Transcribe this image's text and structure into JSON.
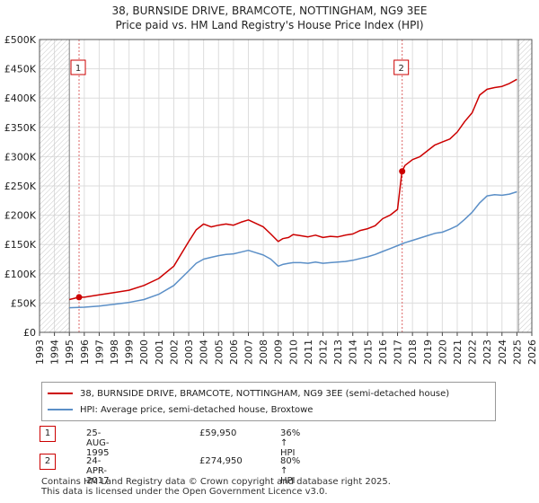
{
  "chart_data": {
    "type": "line",
    "title": "38, BURNSIDE DRIVE, BRAMCOTE, NOTTINGHAM, NG9 3EE",
    "subtitle": "Price paid vs. HM Land Registry's House Price Index (HPI)",
    "xlabel": "",
    "ylabel": "",
    "xlim": [
      1993,
      2026
    ],
    "ylim": [
      0,
      500000
    ],
    "x_ticks": [
      "1993",
      "1994",
      "1995",
      "1996",
      "1997",
      "1998",
      "1999",
      "2000",
      "2001",
      "2002",
      "2003",
      "2004",
      "2005",
      "2006",
      "2007",
      "2008",
      "2009",
      "2010",
      "2011",
      "2012",
      "2013",
      "2014",
      "2015",
      "2016",
      "2017",
      "2018",
      "2019",
      "2020",
      "2021",
      "2022",
      "2023",
      "2024",
      "2025",
      "2026"
    ],
    "y_ticks": [
      {
        "value": 0,
        "label": "£0"
      },
      {
        "value": 50000,
        "label": "£50K"
      },
      {
        "value": 100000,
        "label": "£100K"
      },
      {
        "value": 150000,
        "label": "£150K"
      },
      {
        "value": 200000,
        "label": "£200K"
      },
      {
        "value": 250000,
        "label": "£250K"
      },
      {
        "value": 300000,
        "label": "£300K"
      },
      {
        "value": 350000,
        "label": "£350K"
      },
      {
        "value": 400000,
        "label": "£400K"
      },
      {
        "value": 450000,
        "label": "£450K"
      },
      {
        "value": 500000,
        "label": "£500K"
      }
    ],
    "grid": true,
    "hatched_ranges": [
      [
        1993,
        1995.0
      ],
      [
        2025.1,
        2026
      ]
    ],
    "series": [
      {
        "name": "38, BURNSIDE DRIVE, BRAMCOTE, NOTTINGHAM, NG9 3EE (semi-detached house)",
        "color": "#cc0000",
        "x": [
          1995.0,
          1995.65,
          1996.0,
          1997.0,
          1998.0,
          1999.0,
          2000.0,
          2001.0,
          2002.0,
          2003.0,
          2003.5,
          2004.0,
          2004.5,
          2005.0,
          2005.5,
          2006.0,
          2006.5,
          2007.0,
          2007.5,
          2008.0,
          2008.5,
          2009.0,
          2009.3,
          2009.7,
          2010.0,
          2010.5,
          2011.0,
          2011.5,
          2012.0,
          2012.5,
          2013.0,
          2013.5,
          2014.0,
          2014.5,
          2015.0,
          2015.5,
          2016.0,
          2016.5,
          2017.0,
          2017.3,
          2017.4,
          2017.5,
          2018.0,
          2018.5,
          2019.0,
          2019.5,
          2020.0,
          2020.5,
          2021.0,
          2021.5,
          2022.0,
          2022.5,
          2023.0,
          2023.5,
          2024.0,
          2024.5,
          2025.0
        ],
        "values": [
          56000,
          59950,
          60000,
          64000,
          68000,
          72000,
          80000,
          92000,
          113000,
          155000,
          175000,
          185000,
          180000,
          183000,
          185000,
          183000,
          188000,
          192000,
          186000,
          180000,
          168000,
          155000,
          160000,
          162000,
          167000,
          165000,
          163000,
          166000,
          162000,
          164000,
          163000,
          166000,
          168000,
          174000,
          177000,
          182000,
          194000,
          200000,
          210000,
          274950,
          280000,
          285000,
          295000,
          300000,
          310000,
          320000,
          325000,
          330000,
          342000,
          360000,
          375000,
          405000,
          415000,
          418000,
          420000,
          425000,
          432000
        ]
      },
      {
        "name": "HPI: Average price, semi-detached house, Broxtowe",
        "color": "#5b8fc7",
        "x": [
          1995.0,
          1996.0,
          1997.0,
          1998.0,
          1999.0,
          2000.0,
          2001.0,
          2002.0,
          2003.0,
          2003.5,
          2004.0,
          2004.5,
          2005.0,
          2005.5,
          2006.0,
          2006.5,
          2007.0,
          2007.5,
          2008.0,
          2008.5,
          2009.0,
          2009.3,
          2009.7,
          2010.0,
          2010.5,
          2011.0,
          2011.5,
          2012.0,
          2012.5,
          2013.0,
          2013.5,
          2014.0,
          2014.5,
          2015.0,
          2015.5,
          2016.0,
          2016.5,
          2017.0,
          2017.5,
          2018.0,
          2018.5,
          2019.0,
          2019.5,
          2020.0,
          2020.5,
          2021.0,
          2021.5,
          2022.0,
          2022.5,
          2023.0,
          2023.5,
          2024.0,
          2024.5,
          2025.0
        ],
        "values": [
          42000,
          43000,
          45000,
          48000,
          51000,
          56000,
          65000,
          80000,
          105000,
          118000,
          125000,
          128000,
          131000,
          133000,
          134000,
          137000,
          140000,
          136000,
          132000,
          125000,
          113000,
          116000,
          118000,
          119000,
          119000,
          118000,
          120000,
          118000,
          119000,
          120000,
          121000,
          123000,
          126000,
          129000,
          133000,
          138000,
          143000,
          148000,
          153000,
          157000,
          161000,
          165000,
          169000,
          171000,
          176000,
          182000,
          193000,
          205000,
          221000,
          233000,
          235000,
          234000,
          236000,
          240000
        ]
      }
    ],
    "sale_markers": [
      {
        "label": "1",
        "x": 1995.65,
        "value": 59950
      },
      {
        "label": "2",
        "x": 2017.31,
        "value": 274950
      }
    ]
  },
  "legend": {
    "property_label": "38, BURNSIDE DRIVE, BRAMCOTE, NOTTINGHAM, NG9 3EE (semi-detached house)",
    "hpi_label": "HPI: Average price, semi-detached house, Broxtowe",
    "property_color": "#cc0000",
    "hpi_color": "#5b8fc7"
  },
  "transactions": [
    {
      "num": "1",
      "date": "25-AUG-1995",
      "price": "£59,950",
      "hpi": "36% ↑ HPI"
    },
    {
      "num": "2",
      "date": "24-APR-2017",
      "price": "£274,950",
      "hpi": "80% ↑ HPI"
    }
  ],
  "footer": {
    "line1": "Contains HM Land Registry data © Crown copyright and database right 2025.",
    "line2": "This data is licensed under the Open Government Licence v3.0."
  }
}
